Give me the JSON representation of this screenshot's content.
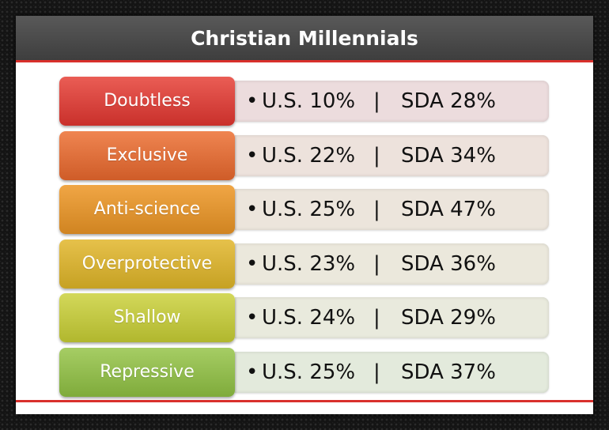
{
  "title": "Christian Millennials",
  "rows": [
    {
      "label": "Doubtless",
      "us": "U.S. 10%",
      "sda": "SDA 28%",
      "color_top": "#ea5d55",
      "color_bottom": "#c9302b",
      "box": "#ecdcdd"
    },
    {
      "label": "Exclusive",
      "us": "U.S. 22%",
      "sda": "SDA 34%",
      "color_top": "#ef8551",
      "color_bottom": "#cf5c28",
      "box": "#ede2dc"
    },
    {
      "label": "Anti-science",
      "us": "U.S. 25%",
      "sda": "SDA 47%",
      "color_top": "#f0a645",
      "color_bottom": "#d08421",
      "box": "#ece5dc"
    },
    {
      "label": "Overprotective",
      "us": "U.S. 23%",
      "sda": "SDA 36%",
      "color_top": "#e6c14b",
      "color_bottom": "#c6a123",
      "box": "#ebe8dc"
    },
    {
      "label": "Shallow",
      "us": "U.S. 24%",
      "sda": "SDA 29%",
      "color_top": "#d3d85a",
      "color_bottom": "#b1b72e",
      "box": "#e9eadd"
    },
    {
      "label": "Repressive",
      "us": "U.S. 25%",
      "sda": "SDA 37%",
      "color_top": "#a6cd64",
      "color_bottom": "#7fab3b",
      "box": "#e3eadc"
    }
  ],
  "bullet": "•",
  "separator": "|",
  "colors": {
    "accent_rule": "#d9302c",
    "title_bar": "#4a4a4a"
  }
}
